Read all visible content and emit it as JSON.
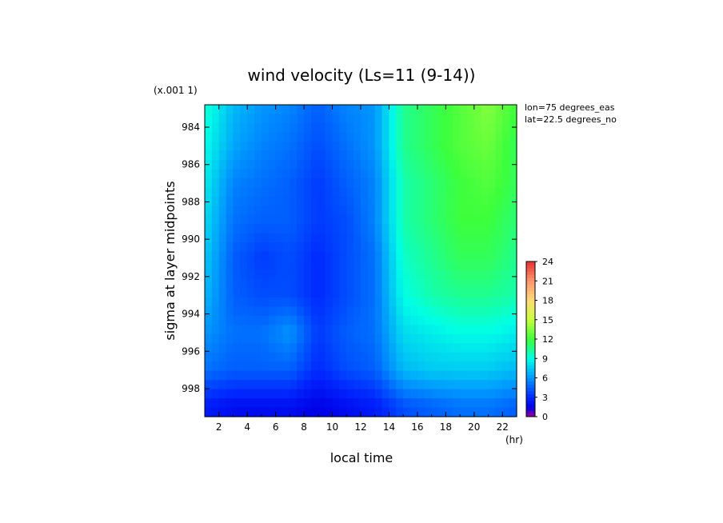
{
  "chart_data": {
    "type": "heatmap",
    "title": "wind velocity (Ls=11 (9-14))",
    "scale_note": "(x.001 1)",
    "xlabel": "local time",
    "ylabel": "sigma at layer midpoints",
    "x_unit": "(hr)",
    "annotations": [
      "lon=75 degrees_eas",
      "lat=22.5 degrees_no"
    ],
    "x_ticks": [
      "2",
      "4",
      "6",
      "8",
      "10",
      "12",
      "14",
      "16",
      "18",
      "20",
      "22"
    ],
    "y_ticks": [
      "984",
      "986",
      "988",
      "990",
      "992",
      "994",
      "996",
      "998"
    ],
    "xlim": [
      1,
      23
    ],
    "ylim": [
      999.5,
      982.8
    ],
    "colorbar_ticks": [
      "0",
      "3",
      "6",
      "9",
      "12",
      "15",
      "18",
      "21",
      "24"
    ],
    "colorbar_range": [
      0,
      24
    ],
    "x": [
      1,
      3,
      5,
      7,
      9,
      11,
      13,
      15,
      17,
      19,
      21,
      23
    ],
    "y": [
      983,
      985,
      987,
      989,
      991,
      993,
      995,
      997,
      999
    ],
    "z": [
      [
        9.5,
        7.0,
        6.0,
        5.5,
        4.5,
        5.5,
        6.0,
        10.5,
        11.5,
        12.5,
        13.5,
        12.0
      ],
      [
        9.0,
        6.5,
        5.5,
        5.0,
        4.0,
        5.0,
        6.0,
        10.5,
        11.5,
        12.5,
        13.0,
        11.5
      ],
      [
        8.5,
        5.5,
        5.0,
        4.5,
        3.5,
        4.5,
        5.5,
        10.0,
        11.0,
        12.0,
        12.5,
        11.5
      ],
      [
        8.0,
        5.0,
        4.5,
        4.5,
        3.5,
        4.0,
        5.5,
        10.0,
        11.0,
        12.0,
        12.0,
        11.0
      ],
      [
        7.5,
        4.5,
        3.5,
        4.0,
        3.0,
        4.0,
        5.0,
        9.5,
        10.5,
        11.5,
        11.5,
        10.5
      ],
      [
        7.0,
        4.5,
        4.0,
        4.0,
        3.0,
        4.0,
        5.0,
        9.0,
        10.0,
        10.5,
        10.5,
        10.0
      ],
      [
        6.0,
        5.0,
        5.0,
        6.0,
        3.5,
        4.5,
        5.0,
        8.0,
        8.5,
        9.0,
        9.0,
        8.5
      ],
      [
        5.0,
        4.5,
        4.5,
        4.5,
        3.0,
        4.0,
        4.5,
        7.0,
        7.5,
        7.5,
        7.5,
        7.0
      ],
      [
        2.5,
        2.0,
        2.0,
        2.0,
        1.5,
        2.0,
        2.5,
        4.0,
        4.5,
        5.0,
        5.0,
        4.5
      ]
    ]
  }
}
